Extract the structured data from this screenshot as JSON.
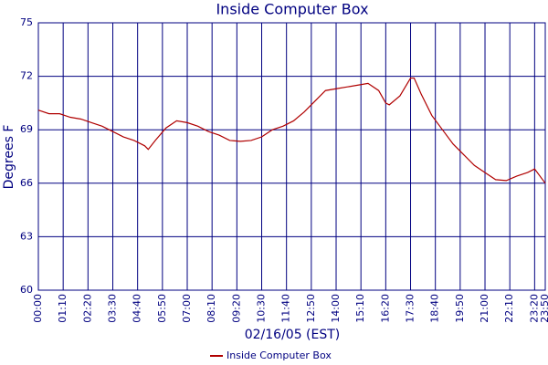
{
  "chart_data": {
    "type": "line",
    "title": "Inside Computer Box",
    "y_label": "Degrees F",
    "x_label": "02/16/05 (EST)",
    "x": [
      "00:00",
      "00:30",
      "01:00",
      "01:30",
      "02:00",
      "02:30",
      "03:00",
      "03:30",
      "04:00",
      "04:30",
      "04:50",
      "05:00",
      "05:10",
      "05:30",
      "06:00",
      "06:30",
      "07:00",
      "07:30",
      "08:00",
      "08:30",
      "09:00",
      "09:30",
      "10:00",
      "10:30",
      "11:00",
      "11:30",
      "12:00",
      "12:30",
      "13:00",
      "13:30",
      "14:00",
      "14:30",
      "15:00",
      "15:30",
      "16:00",
      "16:20",
      "16:30",
      "17:00",
      "17:30",
      "17:40",
      "18:00",
      "18:30",
      "19:00",
      "19:30",
      "20:00",
      "20:30",
      "21:00",
      "21:30",
      "22:00",
      "22:30",
      "23:00",
      "23:20",
      "23:50"
    ],
    "series": [
      {
        "name": "Inside Computer Box",
        "color": "#b00000",
        "values": [
          70.1,
          69.9,
          69.9,
          69.7,
          69.6,
          69.4,
          69.2,
          68.9,
          68.6,
          68.4,
          68.2,
          68.1,
          67.9,
          68.4,
          69.1,
          69.5,
          69.4,
          69.2,
          68.9,
          68.7,
          68.4,
          68.35,
          68.4,
          68.6,
          69.0,
          69.2,
          69.5,
          70.0,
          70.6,
          71.2,
          71.3,
          71.4,
          71.5,
          71.6,
          71.2,
          70.5,
          70.4,
          70.9,
          71.9,
          71.9,
          71.0,
          69.8,
          69.0,
          68.2,
          67.6,
          67.0,
          66.6,
          66.2,
          66.15,
          66.4,
          66.6,
          66.8,
          66.0
        ]
      }
    ],
    "xlim": [
      "00:00",
      "23:50"
    ],
    "xticks": [
      "00:00",
      "01:10",
      "02:20",
      "03:30",
      "04:40",
      "05:50",
      "07:00",
      "08:10",
      "09:20",
      "10:30",
      "11:40",
      "12:50",
      "14:00",
      "15:10",
      "16:20",
      "17:30",
      "18:40",
      "19:50",
      "21:00",
      "22:10",
      "23:20",
      "23:50"
    ],
    "ylim": [
      60,
      75
    ],
    "yticks": [
      60,
      63,
      66,
      69,
      72,
      75
    ],
    "grid": true
  }
}
